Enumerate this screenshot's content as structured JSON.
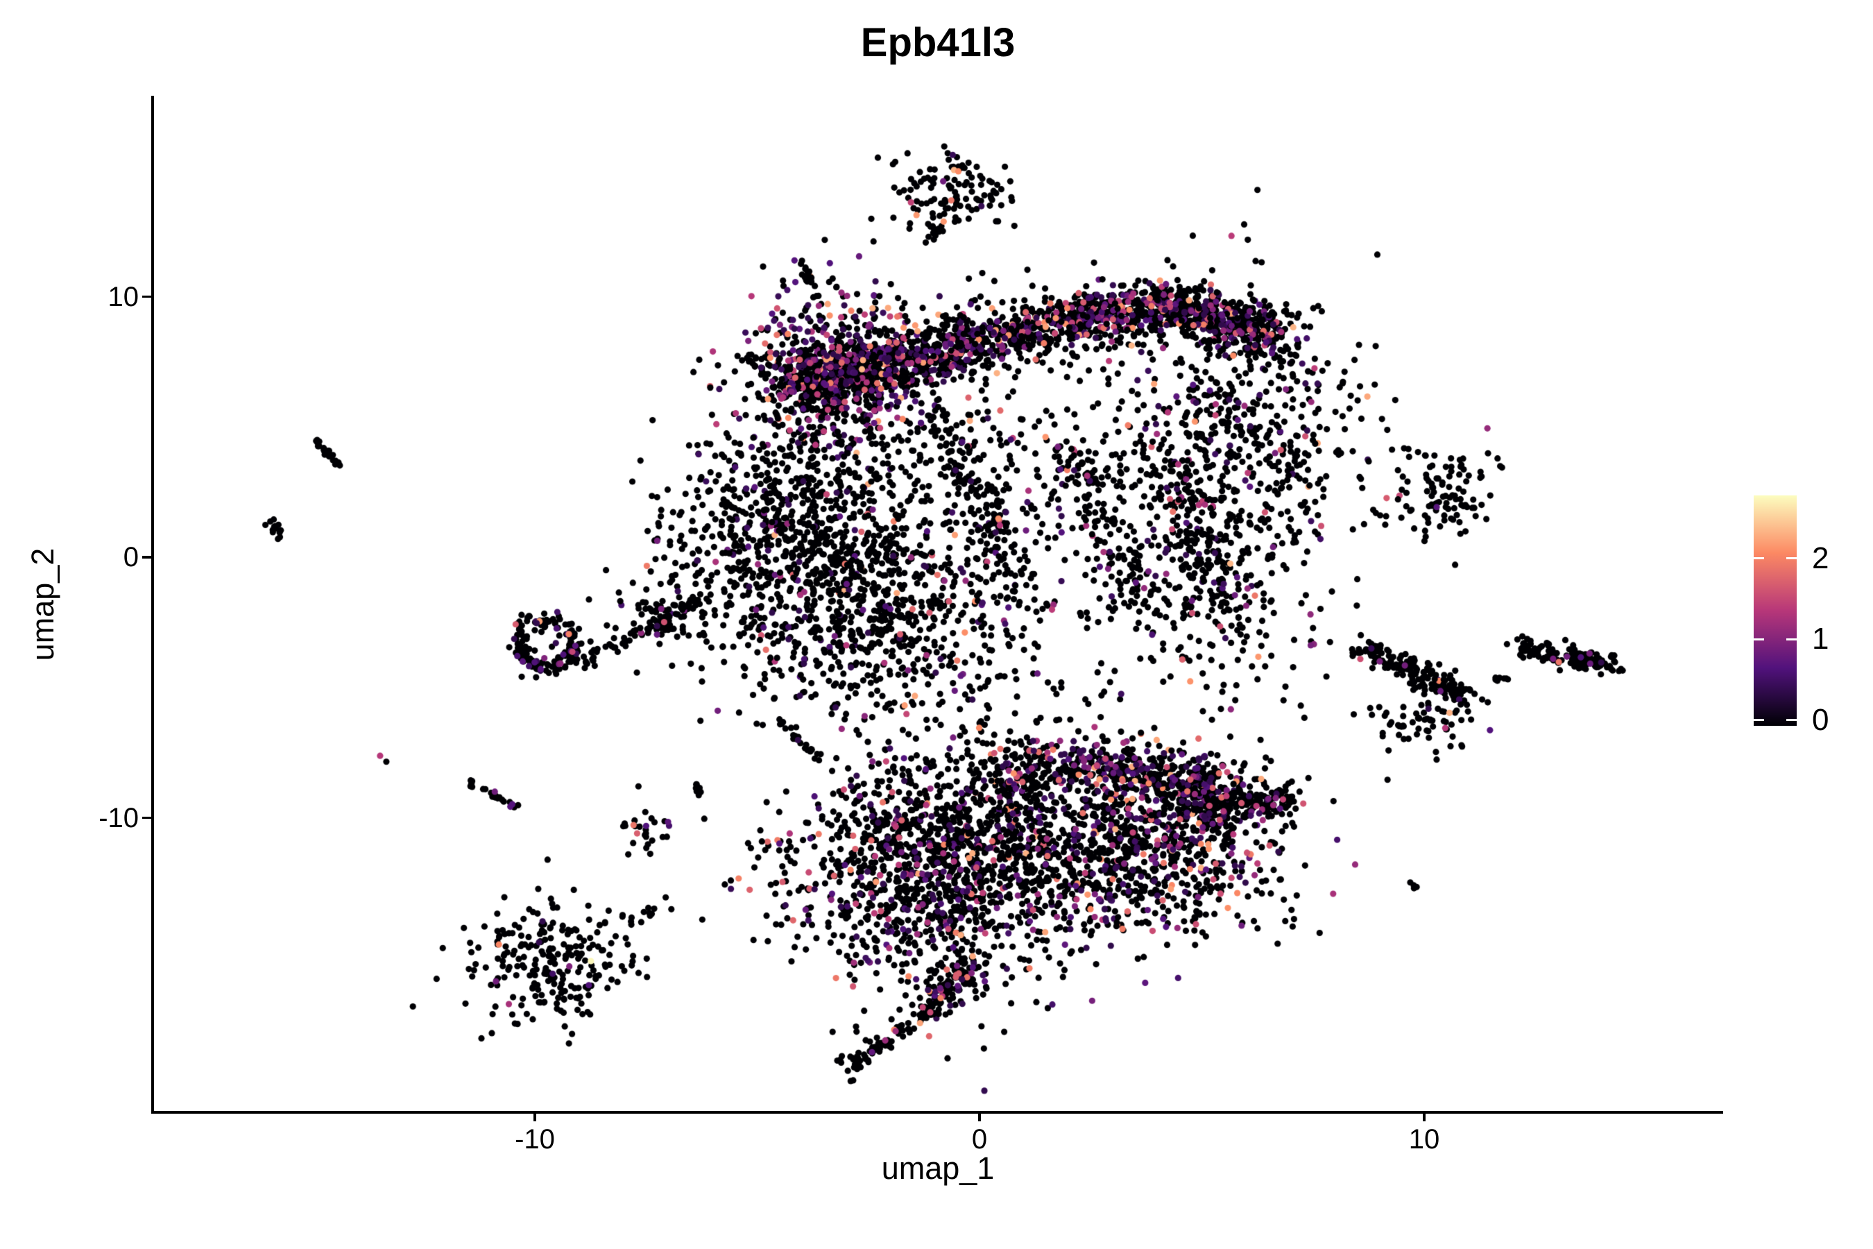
{
  "title": "Epb41l3",
  "axes": {
    "x": {
      "label": "umap_1",
      "range": [
        -18.6,
        16.7
      ],
      "ticks": [
        {
          "value": -10,
          "label": "-10"
        },
        {
          "value": 0,
          "label": "0"
        },
        {
          "value": 10,
          "label": "10"
        }
      ]
    },
    "y": {
      "label": "umap_2",
      "range": [
        -21.3,
        17.7
      ],
      "ticks": [
        {
          "value": 10,
          "label": "10"
        },
        {
          "value": 0,
          "label": "0"
        },
        {
          "value": -10,
          "label": "-10"
        }
      ]
    }
  },
  "legend": {
    "domain": [
      -0.07,
      2.78
    ],
    "ticks": [
      {
        "value": 2,
        "label": "2"
      },
      {
        "value": 1,
        "label": "1"
      },
      {
        "value": 0,
        "label": "0"
      }
    ]
  },
  "chart_data": {
    "type": "scatter",
    "title": "Epb41l3",
    "xlabel": "umap_1",
    "ylabel": "umap_2",
    "xlim": [
      -18.6,
      16.7
    ],
    "ylim": [
      -21.3,
      17.7
    ],
    "grid": false,
    "background": "#ffffff",
    "colormap": "magma",
    "color_domain": [
      -0.07,
      2.78
    ],
    "colormap_stops": [
      {
        "t": 0.0,
        "color": "#000004"
      },
      {
        "t": 0.25,
        "color": "#51127c"
      },
      {
        "t": 0.5,
        "color": "#b73779"
      },
      {
        "t": 0.75,
        "color": "#fc8963"
      },
      {
        "t": 1.0,
        "color": "#fcfdbf"
      }
    ],
    "point_radius_px": 4.6,
    "clusters": [
      {
        "name": "upper-band",
        "type": "band",
        "path": [
          [
            -4.4,
            6.6
          ],
          [
            -1.75,
            7.54
          ],
          [
            1.37,
            8.87
          ],
          [
            4.18,
            9.67
          ],
          [
            6.68,
            8.52
          ]
        ],
        "thickness": 0.55,
        "n": 1750,
        "cf": 0.26
      },
      {
        "name": "upper-core",
        "type": "blob",
        "cx": -3.15,
        "cy": 7.0,
        "sx": 1.0,
        "sy": 1.5,
        "n": 650,
        "cf": 0.42
      },
      {
        "name": "core-west-streak",
        "type": "streak",
        "x1": -5.34,
        "y1": 8.07,
        "x2": -4.79,
        "y2": 7.0,
        "jitter": 0.07,
        "n": 14,
        "cf": 0.1
      },
      {
        "name": "north-streak",
        "type": "streak",
        "x1": -4.06,
        "y1": 11.58,
        "x2": -3.69,
        "y2": 9.99,
        "jitter": 0.05,
        "n": 26,
        "cf": 0.0
      },
      {
        "name": "left-lobe",
        "type": "blob",
        "cx": -3.78,
        "cy": 0.35,
        "sx": 1.75,
        "sy": 2.4,
        "n": 950,
        "cf": 0.08
      },
      {
        "name": "lobe-fringe",
        "type": "blob",
        "cx": -5.0,
        "cy": 1.8,
        "sx": 0.9,
        "sy": 1.6,
        "n": 90,
        "cf": 0.05
      },
      {
        "name": "mid-sparse",
        "type": "blob",
        "cx": 1.6,
        "cy": 2.2,
        "sx": 2.6,
        "sy": 3.9,
        "n": 420,
        "cf": 0.1
      },
      {
        "name": "mid-streak-1",
        "type": "streak",
        "x1": -0.97,
        "y1": 5.67,
        "x2": 0.9,
        "y2": -0.72,
        "jitter": 0.28,
        "n": 130,
        "cf": 0.1
      },
      {
        "name": "mid-streak-2",
        "type": "streak",
        "x1": 2.0,
        "y1": 4.34,
        "x2": 3.56,
        "y2": -1.78,
        "jitter": 0.3,
        "n": 110,
        "cf": 0.1
      },
      {
        "name": "mid-streak-3",
        "type": "streak",
        "x1": 4.49,
        "y1": 4.07,
        "x2": 5.59,
        "y2": -2.58,
        "jitter": 0.3,
        "n": 100,
        "cf": 0.12
      },
      {
        "name": "right-lobe-upper",
        "type": "blob",
        "cx": 5.9,
        "cy": 5.4,
        "sx": 1.35,
        "sy": 2.6,
        "n": 430,
        "cf": 0.15
      },
      {
        "name": "right-lobe-lower",
        "type": "blob",
        "cx": 5.12,
        "cy": -0.45,
        "sx": 1.35,
        "sy": 2.6,
        "n": 330,
        "cf": 0.15
      },
      {
        "name": "southwest-flank",
        "type": "blob",
        "cx": -1.9,
        "cy": -2.72,
        "sx": 1.5,
        "sy": 1.9,
        "n": 430,
        "cf": 0.08
      },
      {
        "name": "band-halo",
        "type": "blob",
        "cx": 1.0,
        "cy": 8.9,
        "sx": 1.9,
        "sy": 0.9,
        "n": 70,
        "cf": 0.15
      },
      {
        "name": "isolated-north-cluster",
        "type": "blob",
        "cx": -0.69,
        "cy": 14.06,
        "sx": 0.62,
        "sy": 0.85,
        "n": 125,
        "cf": 0.07
      },
      {
        "name": "north-cluster-tail",
        "type": "streak",
        "x1": -1.0,
        "y1": 12.6,
        "x2": -1.28,
        "y2": 11.8,
        "jitter": 0.1,
        "n": 8,
        "cf": 0.1
      },
      {
        "name": "hook-ring",
        "type": "ring",
        "cx": -9.75,
        "cy": -3.3,
        "r": 0.62,
        "jitter": 0.22,
        "n": 165,
        "cf": 0.15
      },
      {
        "name": "hook-chain",
        "type": "streak",
        "x1": -8.9,
        "y1": -3.95,
        "x2": -6.2,
        "y2": -1.6,
        "jitter": 0.12,
        "n": 60,
        "cf": 0.06
      },
      {
        "name": "hook-chain-bulge",
        "type": "blob",
        "cx": -7.1,
        "cy": -2.4,
        "sx": 0.38,
        "sy": 0.55,
        "n": 55,
        "cf": 0.06
      },
      {
        "name": "far-west-streak",
        "type": "streak",
        "x1": -14.93,
        "y1": 4.47,
        "x2": -14.38,
        "y2": 3.59,
        "jitter": 0.05,
        "n": 22,
        "cf": 0.0
      },
      {
        "name": "west-cross",
        "type": "blob",
        "cx": -15.85,
        "cy": 1.15,
        "sx": 0.14,
        "sy": 0.3,
        "n": 13,
        "cf": 0.0
      },
      {
        "name": "west-streak-2",
        "type": "streak",
        "x1": -11.51,
        "y1": -8.65,
        "x2": -10.39,
        "y2": -9.56,
        "jitter": 0.06,
        "n": 26,
        "cf": 0.05
      },
      {
        "name": "tiny-streak",
        "type": "streak",
        "x1": -6.43,
        "y1": -8.65,
        "x2": -6.24,
        "y2": -9.1,
        "jitter": 0.05,
        "n": 8,
        "cf": 0.0
      },
      {
        "name": "small-south-cluster",
        "type": "blob",
        "cx": -7.5,
        "cy": -10.45,
        "sx": 0.3,
        "sy": 0.42,
        "n": 26,
        "cf": 0.05
      },
      {
        "name": "small-purple-cluster",
        "type": "blob",
        "cx": -4.85,
        "cy": -11.05,
        "sx": 0.24,
        "sy": 0.33,
        "n": 12,
        "cf": 0.3
      },
      {
        "name": "mid-south-streak",
        "type": "streak",
        "x1": -4.52,
        "y1": -6.31,
        "x2": -3.54,
        "y2": -7.78,
        "jitter": 0.07,
        "n": 20,
        "cf": 0.05
      },
      {
        "name": "lower-body-west",
        "type": "blob",
        "cx": -0.97,
        "cy": -11.77,
        "sx": 1.6,
        "sy": 2.4,
        "n": 1400,
        "cf": 0.2
      },
      {
        "name": "lower-body-east",
        "type": "blob",
        "cx": 3.56,
        "cy": -10.9,
        "sx": 1.7,
        "sy": 1.95,
        "n": 1050,
        "cf": 0.2
      },
      {
        "name": "lower-top-edge",
        "type": "band",
        "path": [
          [
            0.28,
            -8.35
          ],
          [
            2.93,
            -7.95
          ],
          [
            5.74,
            -8.84
          ]
        ],
        "thickness": 0.5,
        "n": 420,
        "cf": 0.33
      },
      {
        "name": "lower-east-tip",
        "type": "streak",
        "x1": 4.49,
        "y1": -10.0,
        "x2": 6.9,
        "y2": -9.15,
        "jitter": 0.3,
        "n": 220,
        "cf": 0.2
      },
      {
        "name": "lower-leg",
        "type": "streak",
        "x1": -0.2,
        "y1": -15.5,
        "x2": -1.28,
        "y2": -17.6,
        "jitter": 0.24,
        "n": 130,
        "cf": 0.22
      },
      {
        "name": "lower-tail-chain",
        "type": "streak",
        "x1": -1.3,
        "y1": -17.7,
        "x2": -2.7,
        "y2": -19.3,
        "jitter": 0.1,
        "n": 45,
        "cf": 0.12
      },
      {
        "name": "lower-tail-tip",
        "type": "blob",
        "cx": -2.85,
        "cy": -19.35,
        "sx": 0.18,
        "sy": 0.3,
        "n": 22,
        "cf": 0.05
      },
      {
        "name": "east-top-cluster",
        "type": "blob",
        "cx": 10.5,
        "cy": 2.4,
        "sx": 0.62,
        "sy": 0.92,
        "n": 105,
        "cf": 0.02
      },
      {
        "name": "east-mid-left",
        "type": "streak",
        "x1": 8.63,
        "y1": -3.55,
        "x2": 10.97,
        "y2": -5.3,
        "jitter": 0.22,
        "n": 160,
        "cf": 0.03
      },
      {
        "name": "east-mid-left-lower",
        "type": "blob",
        "cx": 10.1,
        "cy": -6.1,
        "sx": 0.6,
        "sy": 0.8,
        "n": 80,
        "cf": 0.02
      },
      {
        "name": "east-mid-trail",
        "type": "streak",
        "x1": 11.1,
        "y1": -4.85,
        "x2": 12.0,
        "y2": -4.6,
        "jitter": 0.05,
        "n": 7,
        "cf": 0.0
      },
      {
        "name": "east-mid-right",
        "type": "streak",
        "x1": 12.14,
        "y1": -3.4,
        "x2": 14.16,
        "y2": -4.2,
        "jitter": 0.18,
        "n": 135,
        "cf": 0.04
      },
      {
        "name": "east-dash",
        "type": "streak",
        "x1": 9.61,
        "y1": -12.4,
        "x2": 9.85,
        "y2": -12.75,
        "jitter": 0.03,
        "n": 4,
        "cf": 0.0
      },
      {
        "name": "southwest-cluster",
        "type": "blob",
        "cx": -9.63,
        "cy": -15.65,
        "sx": 0.9,
        "sy": 1.15,
        "n": 235,
        "cf": 0.03
      },
      {
        "name": "southwest-arc",
        "type": "streak",
        "x1": -8.61,
        "y1": -14.1,
        "x2": -6.58,
        "y2": -13.3,
        "jitter": 0.2,
        "n": 16,
        "cf": 0.0
      },
      {
        "name": "southwest-below",
        "type": "blob",
        "cx": -9.55,
        "cy": -17.5,
        "sx": 0.2,
        "sy": 0.25,
        "n": 3,
        "cf": 0.0
      }
    ],
    "highlight_points": [
      {
        "x": -8.74,
        "y": -15.5,
        "v": 2.75
      },
      {
        "x": -13.48,
        "y": -7.62,
        "v": 1.35
      },
      {
        "x": -13.34,
        "y": -7.85,
        "v": 0
      },
      {
        "x": 1.73,
        "y": -5.25,
        "v": 0
      },
      {
        "x": 9.52,
        "y": 3.09,
        "v": 0
      },
      {
        "x": -7.78,
        "y": -10.28,
        "v": 1.9
      },
      {
        "x": -7.7,
        "y": -10.6,
        "v": 1.7
      },
      {
        "x": -10.9,
        "y": -9.0,
        "v": 0.85
      },
      {
        "x": 9.0,
        "y": -4.0,
        "v": 0.9
      },
      {
        "x": 12.9,
        "y": -3.9,
        "v": 0.9
      },
      {
        "x": -5.2,
        "y": 8.3,
        "v": 0.95
      }
    ]
  }
}
